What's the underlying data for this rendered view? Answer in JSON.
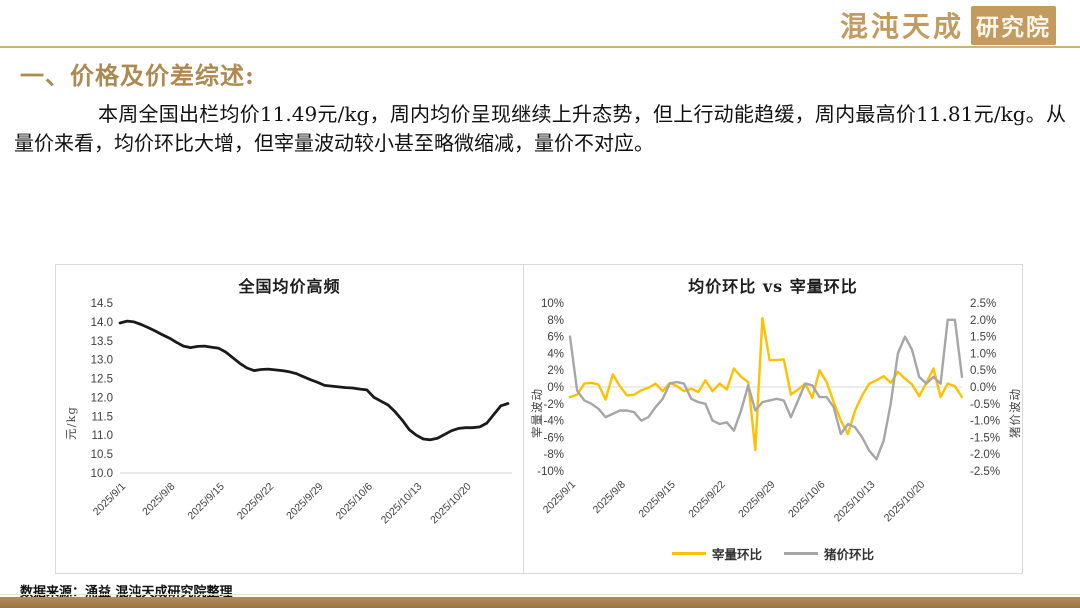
{
  "header": {
    "logo_main": "混沌天成",
    "logo_badge": "研究院"
  },
  "section_title": "一、价格及价差综述:",
  "body_paragraph": "本周全国出栏均价11.49元/kg，周内均价呈现继续上升态势，但上行动能趋缓，周内最高价11.81元/kg。从量价来看，均价环比大增，但宰量波动较小甚至略微缩减，量价不对应。",
  "footer": {
    "source_text": "数据来源：涌益 混沌天成研究院整理"
  },
  "colors": {
    "accent_gold": "#ad8a52",
    "logo_gold": "#c39a5f",
    "divider_gold": "#cdb27c",
    "bottom_bar": "#a9824f",
    "grid": "#d9d9d9",
    "tick_text": "#404040"
  },
  "chart_data": [
    {
      "type": "line",
      "title": "全国均价高频",
      "ylabel": "元/kg",
      "ylim": [
        10.0,
        14.5
      ],
      "ytick_step": 0.5,
      "grid": "baseline-only",
      "legend": "none",
      "x_tick_labels": [
        "2025/9/1",
        "2025/9/8",
        "2025/9/15",
        "2025/9/22",
        "2025/9/29",
        "2025/10/6",
        "2025/10/13",
        "2025/10/20"
      ],
      "x_tick_indices": [
        0,
        7,
        14,
        21,
        28,
        35,
        42,
        49
      ],
      "series": [
        {
          "name": "全国均价",
          "color": "#1a1a1a",
          "values": [
            13.97,
            14.02,
            14.0,
            13.93,
            13.85,
            13.76,
            13.66,
            13.57,
            13.46,
            13.36,
            13.32,
            13.35,
            13.36,
            13.33,
            13.3,
            13.2,
            13.05,
            12.9,
            12.78,
            12.71,
            12.74,
            12.75,
            12.73,
            12.71,
            12.68,
            12.63,
            12.55,
            12.47,
            12.4,
            12.32,
            12.3,
            12.28,
            12.26,
            12.25,
            12.22,
            12.2,
            12.0,
            11.9,
            11.8,
            11.62,
            11.4,
            11.15,
            11.0,
            10.9,
            10.88,
            10.92,
            11.02,
            11.12,
            11.18,
            11.2,
            11.2,
            11.22,
            11.32,
            11.55,
            11.78,
            11.84
          ]
        }
      ]
    },
    {
      "type": "line",
      "title": "均价环比 vs 宰量环比",
      "ylabel_left": "宰量波动",
      "ylabel_right": "猪价波动",
      "ylim_left": [
        -10,
        10
      ],
      "ylim_right": [
        -2.5,
        2.5
      ],
      "ytick_step_left": 2,
      "ytick_step_right": 0.5,
      "grid": "zero-line-only",
      "legend_position": "bottom",
      "x_tick_labels": [
        "2025/9/1",
        "2025/9/8",
        "2025/9/15",
        "2025/9/22",
        "2025/9/29",
        "2025/10/6",
        "2025/10/13",
        "2025/10/20"
      ],
      "x_tick_indices": [
        0,
        7,
        14,
        21,
        28,
        35,
        42,
        49
      ],
      "series": [
        {
          "name": "宰量环比",
          "axis": "left",
          "color": "#FFC000",
          "values": [
            -1.2,
            -0.9,
            0.4,
            0.5,
            0.3,
            -1.5,
            1.5,
            0.1,
            -1.0,
            -0.9,
            -0.4,
            -0.1,
            0.4,
            -0.5,
            0.5,
            0.1,
            -0.5,
            -0.2,
            -0.6,
            0.8,
            -0.5,
            0.4,
            -0.3,
            2.2,
            1.2,
            0.6,
            -7.5,
            8.2,
            3.2,
            3.2,
            3.3,
            -0.9,
            -0.3,
            0.4,
            -1.3,
            2.0,
            0.6,
            -1.8,
            -4.0,
            -5.6,
            -2.8,
            -1.0,
            0.4,
            0.8,
            1.3,
            0.5,
            1.8,
            1.0,
            0.3,
            -1.1,
            0.5,
            2.2,
            -1.2,
            0.4,
            0.1,
            -1.2
          ]
        },
        {
          "name": "猪价环比",
          "axis": "right",
          "color": "#A6A6A6",
          "values": [
            1.5,
            -0.1,
            -0.4,
            -0.5,
            -0.65,
            -0.9,
            -0.8,
            -0.7,
            -0.7,
            -0.75,
            -1.0,
            -0.9,
            -0.6,
            -0.35,
            0.1,
            0.15,
            0.1,
            -0.35,
            -0.45,
            -0.5,
            -1.0,
            -1.1,
            -1.05,
            -1.3,
            -0.7,
            0.05,
            -0.7,
            -0.45,
            -0.4,
            -0.35,
            -0.4,
            -0.9,
            -0.4,
            0.1,
            0.05,
            -0.3,
            -0.3,
            -0.6,
            -1.4,
            -1.1,
            -1.2,
            -1.5,
            -1.9,
            -2.15,
            -1.6,
            -0.5,
            1.0,
            1.5,
            1.1,
            0.3,
            0.1,
            0.3,
            0.1,
            2.0,
            2.0,
            0.3
          ]
        }
      ]
    }
  ]
}
